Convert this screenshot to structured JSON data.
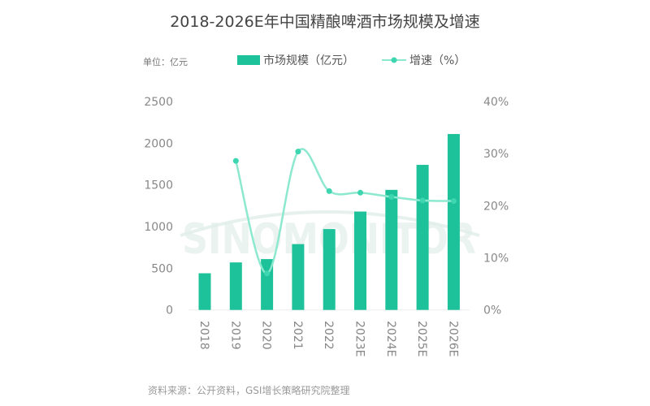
{
  "chart_data": {
    "type": "bar",
    "title": "2018-2026E年中国精酿啤酒市场规模及增速",
    "unit_label": "单位：亿元",
    "categories": [
      "2018",
      "2019",
      "2020",
      "2021",
      "2022",
      "2023E",
      "2024E",
      "2025E",
      "2026E"
    ],
    "series": [
      {
        "name": "市场规模（亿元）",
        "type": "bar",
        "axis": "left",
        "color": "#1ec29a",
        "values": [
          440,
          570,
          610,
          790,
          970,
          1180,
          1440,
          1740,
          2110
        ]
      },
      {
        "name": "增速（%）",
        "type": "line",
        "axis": "right",
        "color": "#8de8d0",
        "values": [
          null,
          28.6,
          7.0,
          30.4,
          22.8,
          22.5,
          21.7,
          21.0,
          20.9
        ]
      }
    ],
    "ylim": [
      0,
      2500
    ],
    "yticks": [
      "0",
      "500",
      "1000",
      "1500",
      "2000",
      "2500"
    ],
    "y2lim": [
      0,
      40
    ],
    "y2ticks": [
      "0%",
      "10%",
      "20%",
      "30%",
      "40%"
    ],
    "legend_position": "top",
    "grid": false,
    "watermark": "SINOMONITOR",
    "source": "资料来源：公开资料，GSI增长策略研究院整理"
  }
}
